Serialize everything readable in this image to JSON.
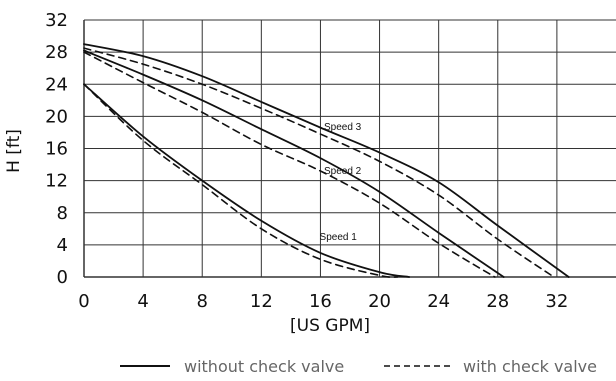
{
  "chart_data": {
    "type": "line",
    "title": "",
    "xlabel": "[US GPM]",
    "ylabel": "H [ft]",
    "xlim": [
      0,
      36
    ],
    "ylim": [
      0,
      32
    ],
    "xticks": [
      0,
      4,
      8,
      12,
      16,
      20,
      24,
      28,
      32
    ],
    "yticks": [
      0,
      4,
      8,
      12,
      16,
      20,
      24,
      28,
      32
    ],
    "grid": true,
    "legend_placement": "bottom",
    "legend": [
      {
        "label": "without check valve",
        "style": "solid"
      },
      {
        "label": "with check valve",
        "style": "dashed"
      }
    ],
    "annotations": [
      {
        "text": "Speed 3",
        "x": 17.5,
        "y": 18.3
      },
      {
        "text": "Speed 2",
        "x": 17.5,
        "y": 12.8
      },
      {
        "text": "Speed 1",
        "x": 17.2,
        "y": 4.6
      }
    ],
    "series": [
      {
        "curve": "speed3",
        "style": "solid",
        "points": [
          [
            0,
            29
          ],
          [
            4,
            27.5
          ],
          [
            8,
            25
          ],
          [
            12,
            21.8
          ],
          [
            16,
            18.6
          ],
          [
            20,
            15.5
          ],
          [
            24,
            11.8
          ],
          [
            28,
            6.4
          ],
          [
            32.8,
            0
          ]
        ]
      },
      {
        "curve": "speed3",
        "style": "dashed",
        "points": [
          [
            0,
            28.5
          ],
          [
            4,
            26.5
          ],
          [
            8,
            24
          ],
          [
            12,
            21
          ],
          [
            16,
            17.8
          ],
          [
            20,
            14.4
          ],
          [
            24,
            10.2
          ],
          [
            28,
            4.7
          ],
          [
            31.8,
            0
          ]
        ]
      },
      {
        "curve": "speed2",
        "style": "solid",
        "points": [
          [
            0,
            28.2
          ],
          [
            4,
            25.2
          ],
          [
            8,
            22
          ],
          [
            12,
            18.4
          ],
          [
            16,
            14.8
          ],
          [
            20,
            10.6
          ],
          [
            24,
            5.5
          ],
          [
            28.4,
            0
          ]
        ]
      },
      {
        "curve": "speed2",
        "style": "dashed",
        "points": [
          [
            0,
            28
          ],
          [
            4,
            24.2
          ],
          [
            8,
            20.5
          ],
          [
            12,
            16.5
          ],
          [
            16,
            13.2
          ],
          [
            20,
            9.2
          ],
          [
            24,
            4.2
          ],
          [
            27.8,
            0
          ]
        ]
      },
      {
        "curve": "speed1",
        "style": "solid",
        "points": [
          [
            0,
            24
          ],
          [
            4,
            17.5
          ],
          [
            8,
            12
          ],
          [
            12,
            7
          ],
          [
            16,
            3
          ],
          [
            20,
            0.6
          ],
          [
            22,
            0
          ]
        ]
      },
      {
        "curve": "speed1",
        "style": "dashed",
        "points": [
          [
            0,
            24
          ],
          [
            4,
            17
          ],
          [
            8,
            11.5
          ],
          [
            12,
            6
          ],
          [
            16,
            2.2
          ],
          [
            20,
            0.2
          ],
          [
            21.2,
            0
          ]
        ]
      }
    ],
    "colors": {
      "line": "#111111",
      "grid": "#333333",
      "legend_text": "#666666"
    }
  }
}
